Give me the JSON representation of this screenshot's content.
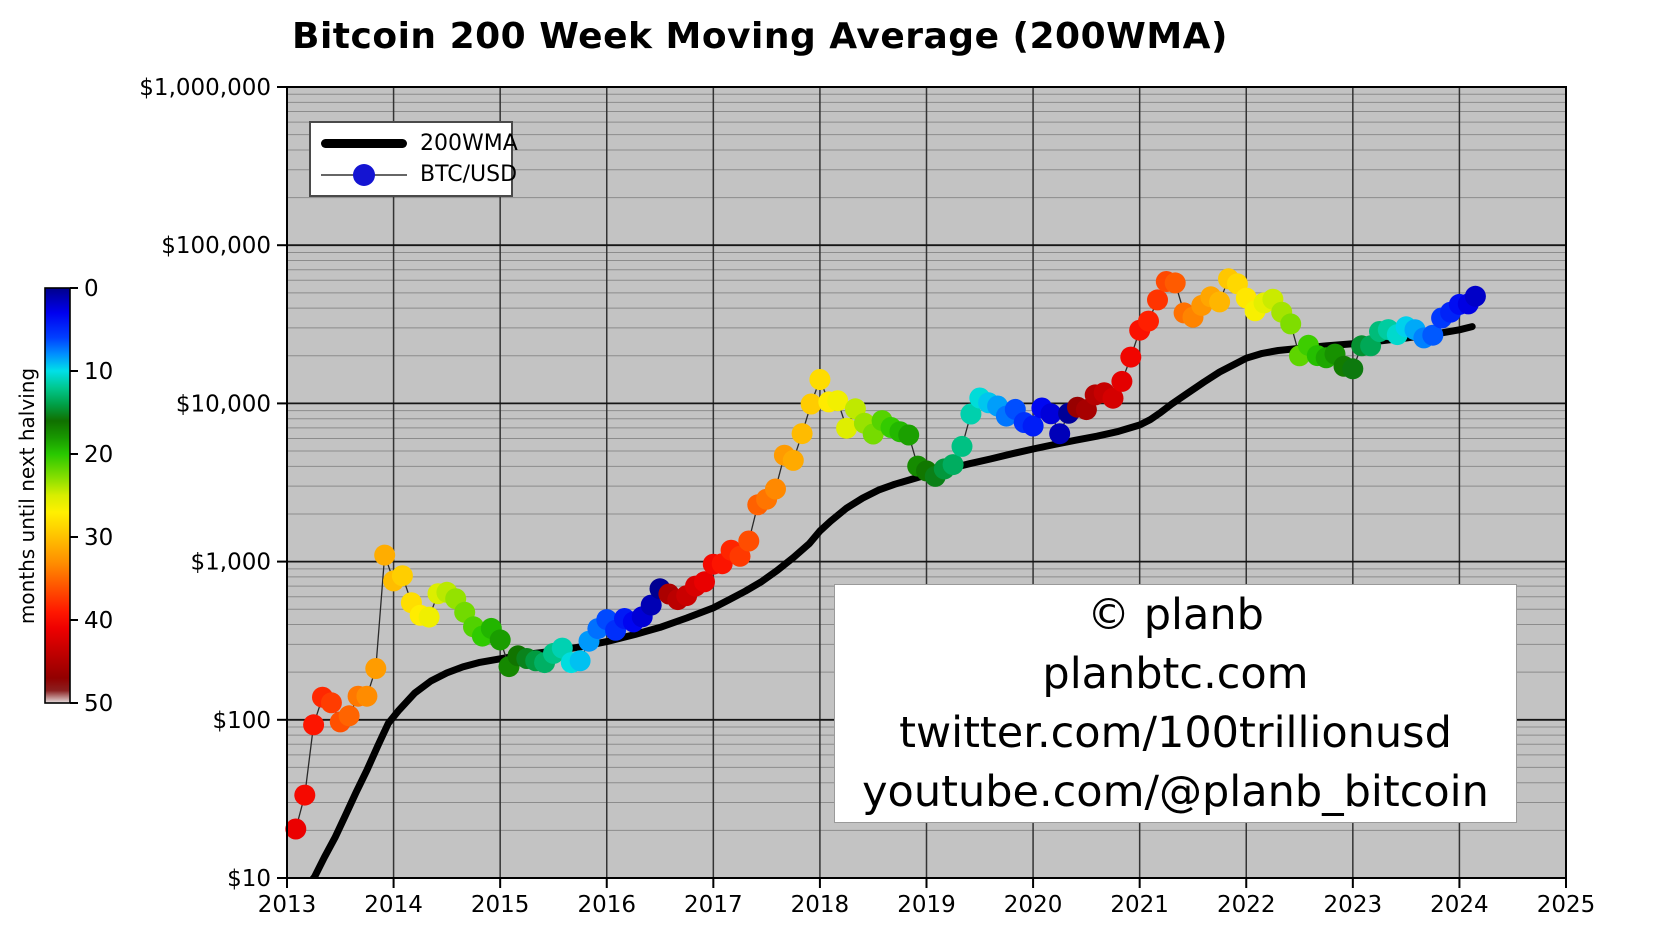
{
  "chart_data": {
    "type": "line+scatter",
    "title": "Bitcoin 200 Week Moving Average (200WMA)",
    "x_axis": {
      "range": [
        2013,
        2025
      ],
      "ticks": [
        "2013",
        "2014",
        "2015",
        "2016",
        "2017",
        "2018",
        "2019",
        "2020",
        "2021",
        "2022",
        "2023",
        "2024",
        "2025"
      ]
    },
    "y_axis": {
      "scale": "log",
      "range": [
        10,
        1000000
      ],
      "tick_values": [
        10,
        100,
        1000,
        10000,
        100000,
        1000000
      ],
      "tick_labels": [
        "$10",
        "$100",
        "$1,000",
        "$10,000",
        "$100,000",
        "$1,000,000"
      ]
    },
    "colorbar": {
      "label": "months until next halving",
      "range": [
        0,
        50
      ],
      "ticks": [
        "0",
        "10",
        "20",
        "30",
        "40",
        "50"
      ],
      "colormap_stops": [
        [
          0,
          "#00008b"
        ],
        [
          3,
          "#0000f0"
        ],
        [
          6,
          "#0040ff"
        ],
        [
          8,
          "#0090ff"
        ],
        [
          10,
          "#00e0e8"
        ],
        [
          12,
          "#00c890"
        ],
        [
          14,
          "#00a048"
        ],
        [
          16,
          "#107000"
        ],
        [
          18,
          "#189800"
        ],
        [
          20,
          "#28c800"
        ],
        [
          23,
          "#8ce000"
        ],
        [
          25,
          "#d8ee00"
        ],
        [
          27,
          "#fff000"
        ],
        [
          29,
          "#ffd200"
        ],
        [
          31,
          "#ffb000"
        ],
        [
          33,
          "#ff9000"
        ],
        [
          35,
          "#ff6800"
        ],
        [
          37,
          "#ff4000"
        ],
        [
          39,
          "#ff1800"
        ],
        [
          41,
          "#ee0000"
        ],
        [
          44,
          "#c00000"
        ],
        [
          47,
          "#920000"
        ],
        [
          48.5,
          "#8b2020"
        ],
        [
          50,
          "#e6dede"
        ]
      ]
    },
    "halvings_decimal_years": [
      2012.913,
      2016.518,
      2020.362,
      2024.302
    ],
    "legend": [
      {
        "label": "200WMA",
        "marker": "thick-black-line",
        "color": "#000000"
      },
      {
        "label": "BTC/USD",
        "marker": "dot",
        "marker_color": "#1414d2"
      }
    ],
    "series": [
      {
        "name": "200WMA",
        "type": "line",
        "points": [
          [
            2013.04,
            6.3
          ],
          [
            2013.15,
            8.2
          ],
          [
            2013.26,
            10.2
          ],
          [
            2013.35,
            13.5
          ],
          [
            2013.45,
            18
          ],
          [
            2013.55,
            25
          ],
          [
            2013.65,
            35
          ],
          [
            2013.75,
            48
          ],
          [
            2013.85,
            68
          ],
          [
            2013.95,
            95
          ],
          [
            2014.05,
            115
          ],
          [
            2014.2,
            148
          ],
          [
            2014.35,
            176
          ],
          [
            2014.5,
            198
          ],
          [
            2014.65,
            216
          ],
          [
            2014.8,
            230
          ],
          [
            2015.0,
            243
          ],
          [
            2015.25,
            259
          ],
          [
            2015.5,
            272
          ],
          [
            2015.75,
            289
          ],
          [
            2016.0,
            312
          ],
          [
            2016.25,
            344
          ],
          [
            2016.5,
            384
          ],
          [
            2016.75,
            440
          ],
          [
            2017.0,
            510
          ],
          [
            2017.15,
            575
          ],
          [
            2017.3,
            650
          ],
          [
            2017.45,
            745
          ],
          [
            2017.6,
            880
          ],
          [
            2017.75,
            1060
          ],
          [
            2017.9,
            1300
          ],
          [
            2018.0,
            1560
          ],
          [
            2018.1,
            1800
          ],
          [
            2018.25,
            2180
          ],
          [
            2018.4,
            2520
          ],
          [
            2018.55,
            2830
          ],
          [
            2018.7,
            3080
          ],
          [
            2018.85,
            3300
          ],
          [
            2019.0,
            3530
          ],
          [
            2019.2,
            3850
          ],
          [
            2019.4,
            4150
          ],
          [
            2019.6,
            4450
          ],
          [
            2019.8,
            4800
          ],
          [
            2020.0,
            5150
          ],
          [
            2020.2,
            5500
          ],
          [
            2020.4,
            5850
          ],
          [
            2020.6,
            6200
          ],
          [
            2020.8,
            6650
          ],
          [
            2021.0,
            7300
          ],
          [
            2021.1,
            7900
          ],
          [
            2021.2,
            8800
          ],
          [
            2021.3,
            9900
          ],
          [
            2021.45,
            11600
          ],
          [
            2021.6,
            13600
          ],
          [
            2021.75,
            15800
          ],
          [
            2021.9,
            17800
          ],
          [
            2022.0,
            19300
          ],
          [
            2022.15,
            20700
          ],
          [
            2022.3,
            21600
          ],
          [
            2022.5,
            22300
          ],
          [
            2022.75,
            23100
          ],
          [
            2023.0,
            23800
          ],
          [
            2023.25,
            24800
          ],
          [
            2023.5,
            25900
          ],
          [
            2023.75,
            27300
          ],
          [
            2024.0,
            29200
          ],
          [
            2024.12,
            30600
          ]
        ]
      },
      {
        "name": "BTC/USD",
        "type": "scatter_colored_by_months_until_halving",
        "points": [
          [
            2013.083,
            20.4
          ],
          [
            2013.167,
            33.4
          ],
          [
            2013.25,
            93
          ],
          [
            2013.333,
            139
          ],
          [
            2013.417,
            128
          ],
          [
            2013.5,
            97
          ],
          [
            2013.583,
            106
          ],
          [
            2013.667,
            141
          ],
          [
            2013.75,
            141
          ],
          [
            2013.833,
            211
          ],
          [
            2013.917,
            1100
          ],
          [
            2014.0,
            755
          ],
          [
            2014.083,
            815
          ],
          [
            2014.167,
            550
          ],
          [
            2014.25,
            458
          ],
          [
            2014.333,
            446
          ],
          [
            2014.417,
            627
          ],
          [
            2014.5,
            640
          ],
          [
            2014.583,
            583
          ],
          [
            2014.667,
            478
          ],
          [
            2014.75,
            387
          ],
          [
            2014.833,
            338
          ],
          [
            2014.917,
            378
          ],
          [
            2015.0,
            320
          ],
          [
            2015.083,
            217
          ],
          [
            2015.167,
            254
          ],
          [
            2015.25,
            244
          ],
          [
            2015.333,
            236
          ],
          [
            2015.417,
            230
          ],
          [
            2015.5,
            263
          ],
          [
            2015.583,
            284
          ],
          [
            2015.667,
            230
          ],
          [
            2015.75,
            236
          ],
          [
            2015.833,
            314
          ],
          [
            2015.917,
            377
          ],
          [
            2016.0,
            430
          ],
          [
            2016.083,
            368
          ],
          [
            2016.167,
            437
          ],
          [
            2016.25,
            416
          ],
          [
            2016.333,
            448
          ],
          [
            2016.417,
            531
          ],
          [
            2016.5,
            673
          ],
          [
            2016.583,
            624
          ],
          [
            2016.667,
            575
          ],
          [
            2016.75,
            610
          ],
          [
            2016.833,
            700
          ],
          [
            2016.917,
            745
          ],
          [
            2017.0,
            963
          ],
          [
            2017.083,
            970
          ],
          [
            2017.167,
            1180
          ],
          [
            2017.25,
            1080
          ],
          [
            2017.333,
            1350
          ],
          [
            2017.417,
            2286
          ],
          [
            2017.5,
            2480
          ],
          [
            2017.583,
            2875
          ],
          [
            2017.667,
            4703
          ],
          [
            2017.75,
            4360
          ],
          [
            2017.833,
            6440
          ],
          [
            2017.917,
            9916
          ],
          [
            2018.0,
            14156
          ],
          [
            2018.083,
            10221
          ],
          [
            2018.167,
            10397
          ],
          [
            2018.25,
            6973
          ],
          [
            2018.333,
            9240
          ],
          [
            2018.417,
            7494
          ],
          [
            2018.5,
            6404
          ],
          [
            2018.583,
            7780
          ],
          [
            2018.667,
            7037
          ],
          [
            2018.75,
            6625
          ],
          [
            2018.833,
            6317
          ],
          [
            2018.917,
            4017
          ],
          [
            2019.0,
            3742
          ],
          [
            2019.083,
            3457
          ],
          [
            2019.167,
            3854
          ],
          [
            2019.25,
            4105
          ],
          [
            2019.333,
            5350
          ],
          [
            2019.417,
            8574
          ],
          [
            2019.5,
            10817
          ],
          [
            2019.583,
            10085
          ],
          [
            2019.667,
            9630
          ],
          [
            2019.75,
            8308
          ],
          [
            2019.833,
            9160
          ],
          [
            2019.917,
            7569
          ],
          [
            2020.0,
            7193
          ],
          [
            2020.083,
            9350
          ],
          [
            2020.167,
            8599
          ],
          [
            2020.25,
            6438
          ],
          [
            2020.333,
            8658
          ],
          [
            2020.417,
            9461
          ],
          [
            2020.5,
            9137
          ],
          [
            2020.583,
            11323
          ],
          [
            2020.667,
            11680
          ],
          [
            2020.75,
            10784
          ],
          [
            2020.833,
            13781
          ],
          [
            2020.917,
            19625
          ],
          [
            2021.0,
            29002
          ],
          [
            2021.083,
            33114
          ],
          [
            2021.167,
            45137
          ],
          [
            2021.25,
            58919
          ],
          [
            2021.333,
            57750
          ],
          [
            2021.417,
            37332
          ],
          [
            2021.5,
            35041
          ],
          [
            2021.583,
            41626
          ],
          [
            2021.667,
            47166
          ],
          [
            2021.75,
            43791
          ],
          [
            2021.833,
            61318
          ],
          [
            2021.917,
            57006
          ],
          [
            2022.0,
            46306
          ],
          [
            2022.083,
            38483
          ],
          [
            2022.167,
            43193
          ],
          [
            2022.25,
            45539
          ],
          [
            2022.333,
            37714
          ],
          [
            2022.417,
            31792
          ],
          [
            2022.5,
            19985
          ],
          [
            2022.583,
            23307
          ],
          [
            2022.667,
            20049
          ],
          [
            2022.75,
            19432
          ],
          [
            2022.833,
            20495
          ],
          [
            2022.917,
            17168
          ],
          [
            2023.0,
            16547
          ],
          [
            2023.083,
            23139
          ],
          [
            2023.167,
            23130
          ],
          [
            2023.25,
            28478
          ],
          [
            2023.333,
            29268
          ],
          [
            2023.417,
            27219
          ],
          [
            2023.5,
            30477
          ],
          [
            2023.583,
            29230
          ],
          [
            2023.667,
            25932
          ],
          [
            2023.75,
            26967
          ],
          [
            2023.833,
            34667
          ],
          [
            2023.917,
            37718
          ],
          [
            2024.0,
            42265
          ],
          [
            2024.083,
            42580
          ],
          [
            2024.15,
            47500
          ]
        ]
      }
    ],
    "watermark": {
      "lines": [
        "© planb",
        "planbtc.com",
        "twitter.com/100trillionusd",
        "youtube.com/@planb_bitcoin"
      ]
    },
    "colors": {
      "plot_bg": "#c3c3c3",
      "grid_minor": "#8c8c8c",
      "grid_major": "#151515",
      "grid_vertical": "#333333",
      "spine": "#000000",
      "wma_line": "#000000",
      "dot_connector": "#2a2a2a",
      "text": "#000000",
      "legend_marker_blue": "#1414d2"
    }
  }
}
